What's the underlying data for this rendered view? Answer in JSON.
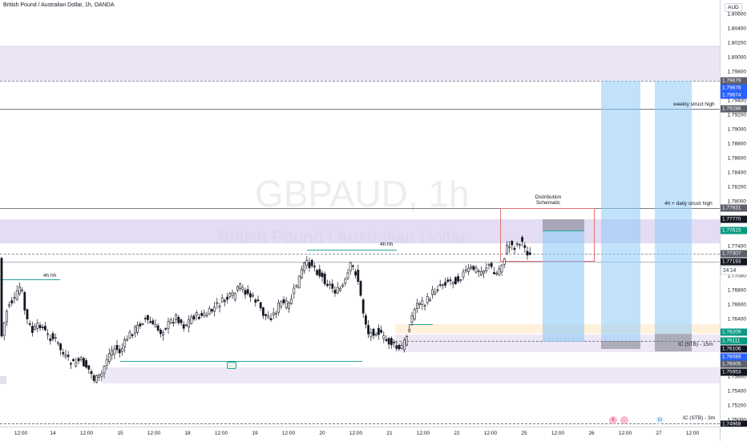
{
  "header": {
    "title": "British Pound / Australian Dollar, 1h, OANDA",
    "currency": "AUD"
  },
  "watermark": {
    "symbol": "GBPAUD, 1h",
    "description": "British Pound / Australian Dollar"
  },
  "annotations": {
    "distribution": "Distribution Schematic",
    "hh_left": "4h hh",
    "hh_mid": "4h hh",
    "weekly": "weekly struct high",
    "daily": "4h + daily struct high",
    "ic15": "IC (STB) - 15m",
    "ic3": "IC (STB) - 3m"
  },
  "price_axis": {
    "ticks": [
      "1.80600",
      "1.80400",
      "1.80200",
      "1.80000",
      "1.79800",
      "1.79400",
      "1.79200",
      "1.79000",
      "1.78800",
      "1.78600",
      "1.78400",
      "1.78200",
      "1.78000",
      "1.77600",
      "1.77400",
      "1.77000",
      "1.76800",
      "1.76600",
      "1.76400",
      "1.75600",
      "1.75400",
      "1.75200",
      "1.75000"
    ],
    "labels": [
      {
        "text": "1.79679",
        "color": "#5d606b"
      },
      {
        "text": "1.79678",
        "color": "#2962ff"
      },
      {
        "text": "1.79674",
        "color": "#2962ff"
      },
      {
        "text": "1.79286",
        "color": "#5d606b"
      },
      {
        "text": "1.77931",
        "color": "#5d606b"
      },
      {
        "text": "1.77770",
        "color": "#131722"
      },
      {
        "text": "1.77615",
        "color": "#089981"
      },
      {
        "text": "1.77307",
        "color": "#5d606b"
      },
      {
        "text": "1.77193",
        "color": "#131722"
      },
      {
        "text": "24:14",
        "color": "#ffffff"
      },
      {
        "text": "1.76209",
        "color": "#089981"
      },
      {
        "text": "1.76111",
        "color": "#089981"
      },
      {
        "text": "1.76106",
        "color": "#131722"
      },
      {
        "text": "1.76089",
        "color": "#2962ff"
      },
      {
        "text": "1.76005",
        "color": "#5d606b"
      },
      {
        "text": "1.75953",
        "color": "#131722"
      },
      {
        "text": "1.74968",
        "color": "#131722"
      }
    ]
  },
  "time_axis": [
    "12:00",
    "14",
    "12:00",
    "15",
    "12:00",
    "18",
    "12:00",
    "19",
    "12:00",
    "20",
    "12:00",
    "21",
    "12:00",
    "22",
    "12:00",
    "25",
    "12:00",
    "26",
    "12:00",
    "27",
    "12:00"
  ],
  "events": {
    "e1": "6",
    "e2": "10"
  },
  "colors": {
    "bull": "#089981",
    "bear": "#f23645",
    "candle": "#131722",
    "zone": "#d1c4e9",
    "box": "#90caf9"
  }
}
